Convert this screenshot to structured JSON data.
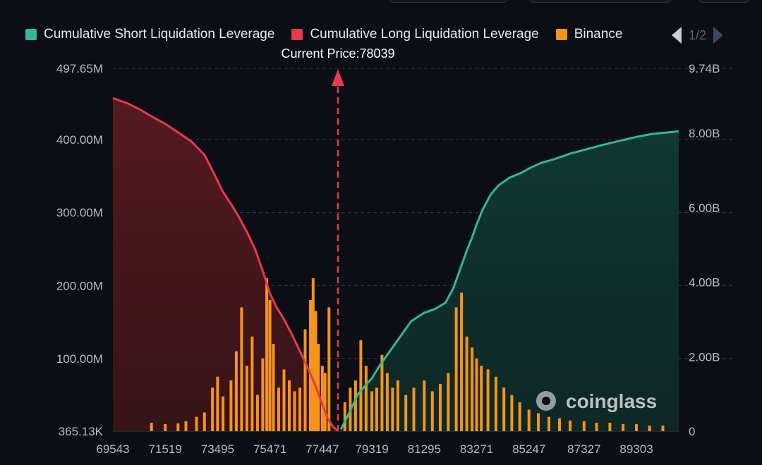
{
  "legend": {
    "items": [
      {
        "label": "Cumulative Short Liquidation Leverage",
        "color": "#2fb99a"
      },
      {
        "label": "Cumulative Long Liquidation Leverage",
        "color": "#e8384f"
      },
      {
        "label": "Binance",
        "color": "#f7931a"
      }
    ],
    "pager": "1/2"
  },
  "watermark": "coinglass",
  "chart_data": {
    "type": "bar",
    "current_price_label": "Current Price:78039",
    "current_price": 78039,
    "x_tick_labels": [
      "69543",
      "71519",
      "73495",
      "75471",
      "77447",
      "79319",
      "81295",
      "83271",
      "85247",
      "87327",
      "89303"
    ],
    "x_range": [
      69543,
      90900
    ],
    "y_left_tick_labels": [
      "497.65M",
      "400.00M",
      "300.00M",
      "200.00M",
      "100.00M",
      "365.13K"
    ],
    "y_left_range": [
      365130,
      497650000
    ],
    "y_right_tick_labels": [
      "9.74B",
      "8.00B",
      "6.00B",
      "4.00B",
      "2.00B",
      "0"
    ],
    "y_right_range": [
      0,
      9740000000
    ],
    "grid": true,
    "legend_position": "top",
    "series": [
      {
        "name": "Cumulative Long Liquidation Leverage",
        "kind": "area-line",
        "axis": "right",
        "color": "#e8384f",
        "x": [
          69543,
          70100,
          70600,
          71000,
          71519,
          72000,
          72500,
          73000,
          73300,
          73495,
          73700,
          74000,
          74300,
          74600,
          74900,
          75200,
          75471,
          75700,
          76000,
          76300,
          76600,
          76900,
          77200,
          77447,
          77650,
          77850,
          78000
        ],
        "values": [
          8940000000.0,
          8800000000.0,
          8620000000.0,
          8450000000.0,
          8250000000.0,
          8020000000.0,
          7780000000.0,
          7420000000.0,
          7000000000.0,
          6720000000.0,
          6420000000.0,
          6100000000.0,
          5750000000.0,
          5350000000.0,
          4900000000.0,
          4300000000.0,
          3700000000.0,
          3350000000.0,
          3000000000.0,
          2600000000.0,
          2150000000.0,
          1700000000.0,
          1200000000.0,
          720000000.0,
          350000000.0,
          120000000.0,
          20000000.0
        ]
      },
      {
        "name": "Cumulative Short Liquidation Leverage",
        "kind": "area-line",
        "axis": "right",
        "color": "#2fb99a",
        "x": [
          78150,
          78500,
          78800,
          79100,
          79319,
          79600,
          80000,
          80400,
          80800,
          81295,
          81700,
          82100,
          82400,
          82700,
          82900,
          83100,
          83271,
          83500,
          83800,
          84100,
          84500,
          85000,
          85247,
          85700,
          86200,
          86800,
          87327,
          88000,
          88600,
          89303,
          89900,
          90500,
          90900
        ],
        "values": [
          50000000.0,
          550000000.0,
          1000000000.0,
          1250000000.0,
          1420000000.0,
          1750000000.0,
          2150000000.0,
          2550000000.0,
          2950000000.0,
          3180000000.0,
          3280000000.0,
          3450000000.0,
          3850000000.0,
          4450000000.0,
          4850000000.0,
          5200000000.0,
          5550000000.0,
          5950000000.0,
          6350000000.0,
          6600000000.0,
          6800000000.0,
          6950000000.0,
          7050000000.0,
          7200000000.0,
          7300000000.0,
          7450000000.0,
          7550000000.0,
          7680000000.0,
          7780000000.0,
          7900000000.0,
          7980000000.0,
          8020000000.0,
          8050000000.0
        ]
      },
      {
        "name": "Binance",
        "kind": "bar",
        "axis": "left",
        "color": "#f7931a",
        "note_bars_x": [
          71000,
          71519,
          72000,
          72300,
          72700,
          73000,
          73300,
          73495,
          73700,
          74000,
          74200,
          74400,
          74600,
          74800,
          75000,
          75200,
          75350,
          75471,
          75600,
          75800,
          76000,
          76200,
          76400,
          76600,
          76800,
          77000,
          77100,
          77200,
          77300,
          77447,
          77550,
          77700,
          78300,
          78500,
          78700,
          78900,
          79100,
          79319,
          79500,
          79700,
          79900,
          80100,
          80300,
          80600,
          80900,
          81295,
          81600,
          81900,
          82200,
          82500,
          82700,
          82900,
          83100,
          83271,
          83450,
          83700,
          84000,
          84300,
          84600,
          84900,
          85247,
          85600,
          86000,
          86400,
          86800,
          87327,
          87800,
          88300,
          88800,
          89303,
          89800,
          90300
        ],
        "values": [
          12000000.0,
          10000000.0,
          11000000.0,
          14000000.0,
          20000000.0,
          26000000.0,
          60000000.0,
          75000000.0,
          48000000.0,
          70000000.0,
          110000000.0,
          170000000.0,
          90000000.0,
          130000000.0,
          50000000.0,
          100000000.0,
          210000000.0,
          180000000.0,
          120000000.0,
          60000000.0,
          85000000.0,
          70000000.0,
          55000000.0,
          60000000.0,
          140000000.0,
          180000000.0,
          210000000.0,
          165000000.0,
          120000000.0,
          90000000.0,
          80000000.0,
          170000000.0,
          40000000.0,
          60000000.0,
          70000000.0,
          125000000.0,
          90000000.0,
          55000000.0,
          60000000.0,
          105000000.0,
          80000000.0,
          60000000.0,
          70000000.0,
          50000000.0,
          60000000.0,
          70000000.0,
          55000000.0,
          65000000.0,
          80000000.0,
          170000000.0,
          190000000.0,
          130000000.0,
          115000000.0,
          100000000.0,
          90000000.0,
          85000000.0,
          75000000.0,
          60000000.0,
          50000000.0,
          40000000.0,
          30000000.0,
          25000000.0,
          20000000.0,
          18000000.0,
          15000000.0,
          14000000.0,
          12000000.0,
          12000000.0,
          10000000.0,
          10000000.0,
          8000000.0,
          8000000.0
        ]
      }
    ]
  }
}
